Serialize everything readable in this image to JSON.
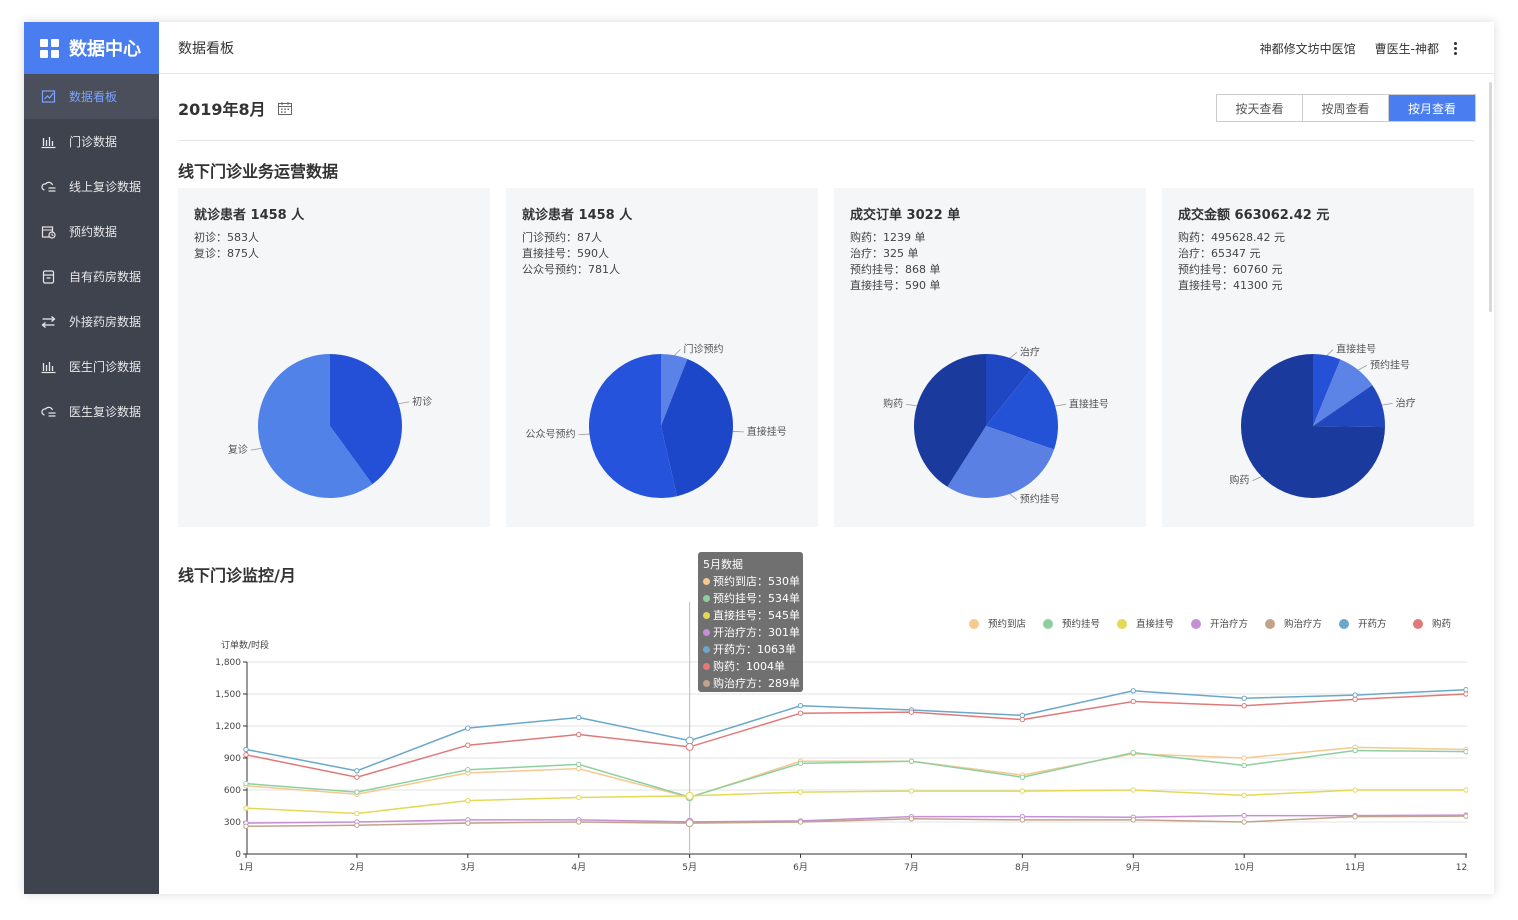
{
  "brand": {
    "title": "数据中心"
  },
  "sidebar": {
    "items": [
      {
        "label": "数据看板",
        "icon": "dashboard-icon",
        "active": true
      },
      {
        "label": "门诊数据",
        "icon": "bar-chart-icon"
      },
      {
        "label": "线上复诊数据",
        "icon": "cloud-list-icon"
      },
      {
        "label": "预约数据",
        "icon": "calendar-clock-icon"
      },
      {
        "label": "自有药房数据",
        "icon": "pharmacy-box-icon"
      },
      {
        "label": "外接药房数据",
        "icon": "exchange-icon"
      },
      {
        "label": "医生门诊数据",
        "icon": "bar-chart-icon"
      },
      {
        "label": "医生复诊数据",
        "icon": "cloud-list-icon"
      }
    ]
  },
  "header": {
    "page_title": "数据看板",
    "clinic": "神都修文坊中医馆",
    "user": "曹医生-神都"
  },
  "date": {
    "label": "2019年8月"
  },
  "view_buttons": {
    "day": "按天查看",
    "week": "按周查看",
    "month": "按月查看",
    "selected": "month"
  },
  "section1": {
    "title": "线下门诊业务运营数据"
  },
  "cards": [
    {
      "title": "就诊患者 1458 人",
      "lines": [
        "初诊：583人",
        "复诊：875人"
      ]
    },
    {
      "title": "就诊患者 1458 人",
      "lines": [
        "门诊预约：87人",
        "直接挂号：590人",
        "公众号预约：781人"
      ]
    },
    {
      "title": "成交订单 3022 单",
      "lines": [
        "购药：1239 单",
        "治疗：325 单",
        "预约挂号：868 单",
        "直接挂号：590 单"
      ]
    },
    {
      "title": "成交金额 663062.42 元",
      "lines": [
        "购药：495628.42 元",
        "治疗：65347 元",
        "预约挂号：60760 元",
        "直接挂号：41300 元"
      ]
    }
  ],
  "section2": {
    "title": "线下门诊监控/月"
  },
  "tooltip": {
    "title": "5月数据",
    "items": [
      {
        "text": "预约到店：530单",
        "color": "#f5c98f"
      },
      {
        "text": "预约挂号：534单",
        "color": "#8fcf9f"
      },
      {
        "text": "直接挂号：545单",
        "color": "#e3d957"
      },
      {
        "text": "开治疗方：301单",
        "color": "#c58fd6"
      },
      {
        "text": "开药方：1063单",
        "color": "#6aa8c9"
      },
      {
        "text": "购药：1004单",
        "color": "#e07a7a"
      },
      {
        "text": "购治疗方：289单",
        "color": "#c2a28a"
      }
    ]
  },
  "chart_data": [
    {
      "type": "pie",
      "slices": [
        {
          "name": "初诊",
          "value": 583,
          "color": "#2450d8"
        },
        {
          "name": "复诊",
          "value": 875,
          "color": "#5182e8"
        }
      ]
    },
    {
      "type": "pie",
      "slices": [
        {
          "name": "门诊预约",
          "value": 87,
          "color": "#5b82e6"
        },
        {
          "name": "直接挂号",
          "value": 590,
          "color": "#1d47c9"
        },
        {
          "name": "公众号预约",
          "value": 781,
          "color": "#2553db"
        }
      ]
    },
    {
      "type": "pie",
      "slices": [
        {
          "name": "治疗",
          "value": 325,
          "color": "#1f47c4"
        },
        {
          "name": "直接挂号",
          "value": 590,
          "color": "#2452d6"
        },
        {
          "name": "预约挂号",
          "value": 868,
          "color": "#5a80e3"
        },
        {
          "name": "购药",
          "value": 1239,
          "color": "#1a3a9e"
        }
      ]
    },
    {
      "type": "pie",
      "slices": [
        {
          "name": "直接挂号",
          "value": 41300,
          "color": "#2551d6"
        },
        {
          "name": "预约挂号",
          "value": 60760,
          "color": "#5c84e6"
        },
        {
          "name": "治疗",
          "value": 65347,
          "color": "#2047bd"
        },
        {
          "name": "购药",
          "value": 495628.42,
          "color": "#1a3a9e"
        }
      ]
    },
    {
      "type": "line",
      "ylabel": "订单数/时段",
      "ylim": [
        0,
        1800
      ],
      "yticks": [
        "0",
        "300",
        "600",
        "900",
        "1,200",
        "1,500",
        "1,800"
      ],
      "categories": [
        "1月",
        "2月",
        "3月",
        "4月",
        "5月",
        "6月",
        "7月",
        "8月",
        "9月",
        "10月",
        "11月",
        "12月"
      ],
      "series": [
        {
          "name": "预约到店",
          "color": "#f5c98f",
          "values": [
            640,
            560,
            760,
            800,
            530,
            870,
            870,
            740,
            940,
            900,
            1000,
            980
          ]
        },
        {
          "name": "预约挂号",
          "color": "#8fcf9f",
          "values": [
            660,
            580,
            790,
            840,
            534,
            850,
            870,
            720,
            950,
            830,
            970,
            960
          ]
        },
        {
          "name": "直接挂号",
          "color": "#e3d957",
          "values": [
            430,
            380,
            500,
            530,
            545,
            580,
            590,
            590,
            600,
            550,
            600,
            600
          ]
        },
        {
          "name": "开治疗方",
          "color": "#c58fd6",
          "values": [
            290,
            300,
            320,
            320,
            301,
            310,
            350,
            350,
            345,
            360,
            360,
            365
          ]
        },
        {
          "name": "购治疗方",
          "color": "#c2a28a",
          "values": [
            260,
            270,
            290,
            300,
            289,
            300,
            330,
            320,
            320,
            300,
            350,
            355
          ]
        },
        {
          "name": "开药方",
          "color": "#6aa8c9",
          "values": [
            980,
            780,
            1180,
            1280,
            1063,
            1390,
            1350,
            1300,
            1530,
            1460,
            1490,
            1540
          ]
        },
        {
          "name": "购药",
          "color": "#e07a7a",
          "values": [
            930,
            720,
            1020,
            1120,
            1004,
            1320,
            1330,
            1260,
            1430,
            1390,
            1450,
            1500
          ]
        }
      ],
      "legend_order": [
        "预约到店",
        "预约挂号",
        "直接挂号",
        "开治疗方",
        "购治疗方",
        "开药方",
        "购药"
      ],
      "highlight_index": 4
    }
  ]
}
